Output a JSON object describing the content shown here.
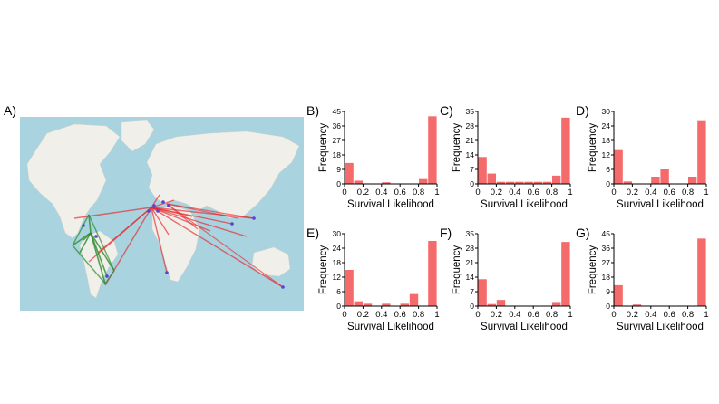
{
  "panel_labels": {
    "A": "A)",
    "B": "B)",
    "C": "C)",
    "D": "D)",
    "E": "E)",
    "F": "F)",
    "G": "G)"
  },
  "colors": {
    "bar": "#f56a6a",
    "ocean": "#a8d3df",
    "land": "#f1efe9",
    "route_red": "#e8232a",
    "route_green": "#2e8b2e",
    "node": "#5b3fd6"
  },
  "chart_data": [
    {
      "id": "B",
      "type": "bar",
      "xlabel": "Survival Likelihood",
      "ylabel": "Frequency",
      "xlim": [
        0,
        1
      ],
      "ylim": [
        0,
        45
      ],
      "yticks": [
        0,
        9,
        18,
        27,
        36,
        45
      ],
      "xticks": [
        "0",
        "0.2",
        "0.4",
        "0.6",
        "0.8",
        "1"
      ],
      "bin_width": 0.1,
      "values": [
        13,
        2,
        0,
        0,
        1,
        0,
        0,
        0,
        3,
        42
      ]
    },
    {
      "id": "C",
      "type": "bar",
      "xlabel": "Survival Likelihood",
      "ylabel": "Frequency",
      "xlim": [
        0,
        1
      ],
      "ylim": [
        0,
        35
      ],
      "yticks": [
        0,
        7,
        14,
        21,
        28,
        35
      ],
      "xticks": [
        "0",
        "0.2",
        "0.4",
        "0.6",
        "0.8",
        "1"
      ],
      "bin_width": 0.1,
      "values": [
        13,
        5,
        1,
        1,
        1,
        1,
        1,
        1,
        4,
        32
      ]
    },
    {
      "id": "D",
      "type": "bar",
      "xlabel": "Survival Likelihood",
      "ylabel": "Frequency",
      "xlim": [
        0,
        1
      ],
      "ylim": [
        0,
        30
      ],
      "yticks": [
        0,
        6,
        12,
        18,
        24,
        30
      ],
      "xticks": [
        "0",
        "0.2",
        "0.4",
        "0.6",
        "0.8",
        "1"
      ],
      "bin_width": 0.1,
      "values": [
        14,
        1,
        0,
        0,
        3,
        6,
        0,
        0,
        3,
        26
      ]
    },
    {
      "id": "E",
      "type": "bar",
      "xlabel": "Survival Likelihood",
      "ylabel": "Frequency",
      "xlim": [
        0,
        1
      ],
      "ylim": [
        0,
        30
      ],
      "yticks": [
        0,
        6,
        12,
        18,
        24,
        30
      ],
      "xticks": [
        "0",
        "0.2",
        "0.4",
        "0.6",
        "0.8",
        "1"
      ],
      "bin_width": 0.1,
      "values": [
        15,
        2,
        1,
        0,
        1,
        0,
        1,
        5,
        0,
        27
      ]
    },
    {
      "id": "F",
      "type": "bar",
      "xlabel": "Survival Likelihood",
      "ylabel": "Frequency",
      "xlim": [
        0,
        1
      ],
      "ylim": [
        0,
        35
      ],
      "yticks": [
        0,
        7,
        14,
        21,
        28,
        35
      ],
      "xticks": [
        "0",
        "0.2",
        "0.4",
        "0.6",
        "0.8",
        "1"
      ],
      "bin_width": 0.1,
      "values": [
        13,
        1,
        3,
        0,
        0,
        0,
        0,
        0,
        2,
        31
      ]
    },
    {
      "id": "G",
      "type": "bar",
      "xlabel": "Survival Likelihood",
      "ylabel": "Frequency",
      "xlim": [
        0,
        1
      ],
      "ylim": [
        0,
        45
      ],
      "yticks": [
        0,
        9,
        18,
        27,
        36,
        45
      ],
      "xticks": [
        "0",
        "0.2",
        "0.4",
        "0.6",
        "0.8",
        "1"
      ],
      "bin_width": 0.1,
      "values": [
        13,
        0,
        1,
        0,
        0,
        0,
        0,
        0,
        0,
        42
      ]
    }
  ]
}
